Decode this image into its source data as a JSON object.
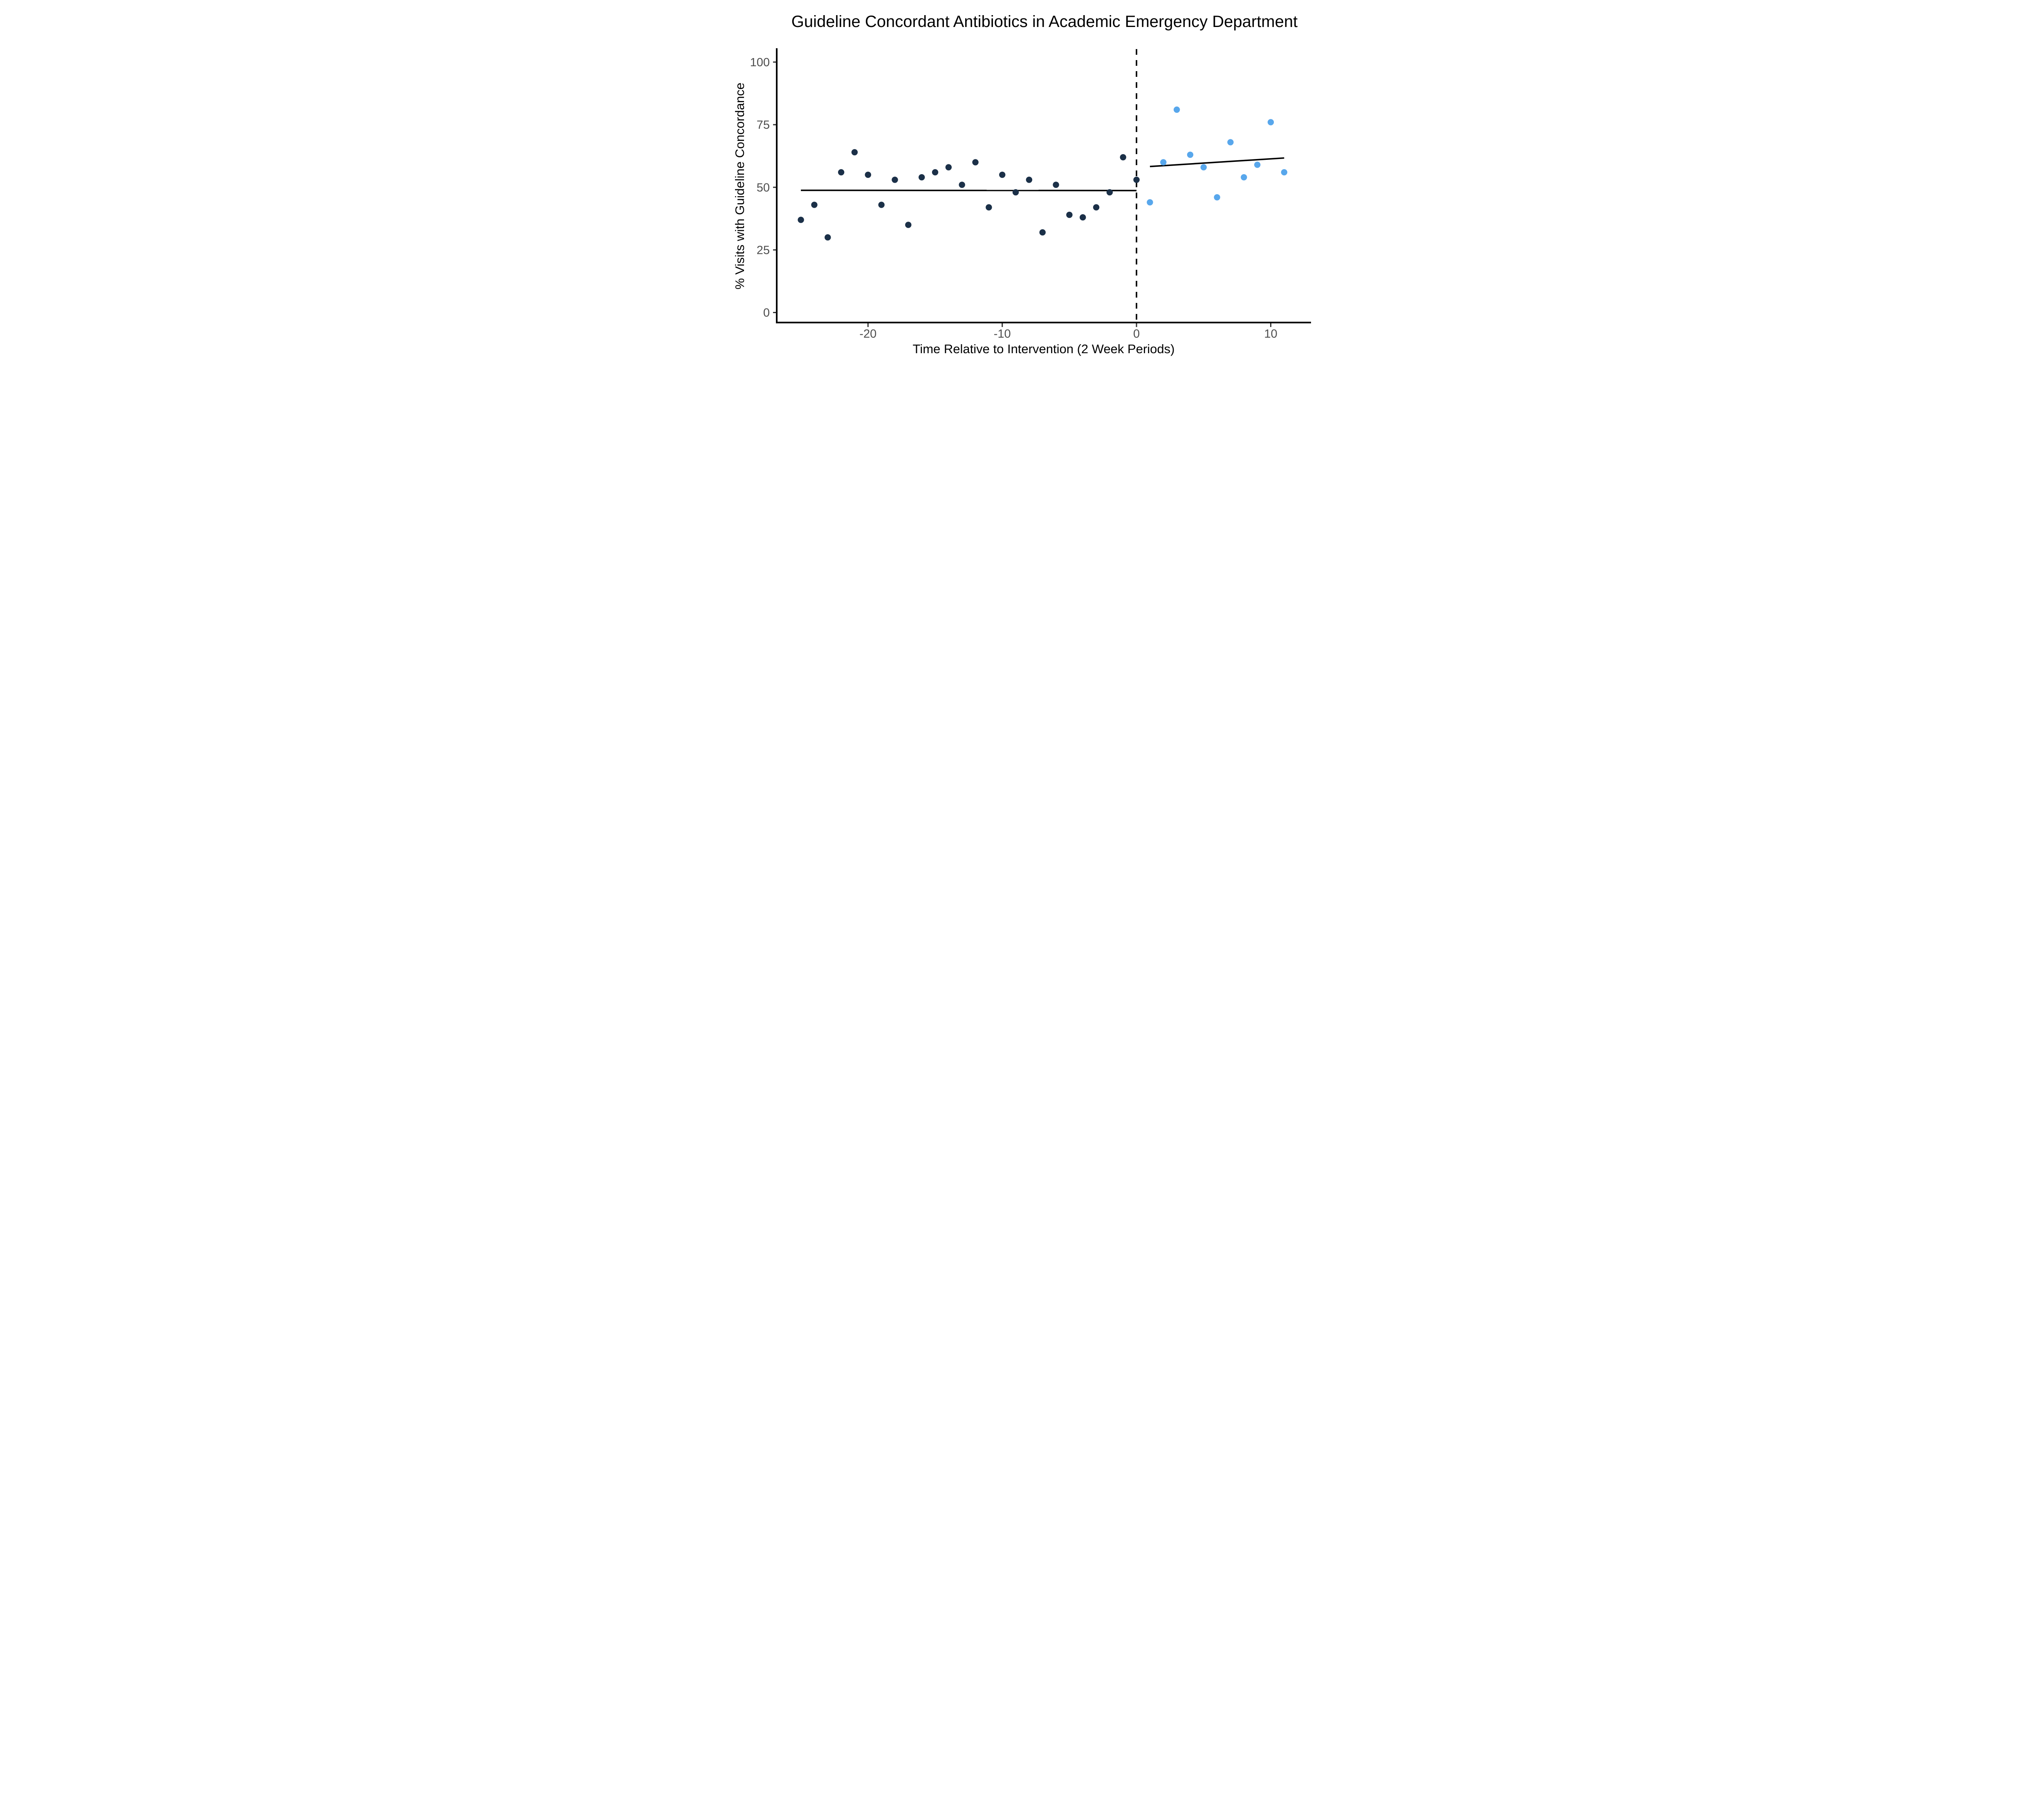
{
  "figure": {
    "title": "Guideline Concordant Antibiotics in Academic Emergency Department",
    "x_axis_label": "Time Relative to Intervention (2 Week Periods)",
    "y_axis_label": "% Visits with Guideline Concordance"
  },
  "chart_data": {
    "type": "scatter",
    "title": "Guideline Concordant Antibiotics in Academic Emergency Department",
    "xlabel": "Time Relative to Intervention (2 Week Periods)",
    "ylabel": "% Visits with Guideline Concordance",
    "xlim": [
      -26.8,
      13.0
    ],
    "ylim": [
      -4,
      105.2
    ],
    "x_ticks": [
      -20,
      -10,
      0,
      10
    ],
    "y_ticks": [
      0,
      25,
      50,
      75,
      100
    ],
    "grid": false,
    "legend_position": "none",
    "series": [
      {
        "name": "pre-intervention",
        "color": "#1B3048",
        "marker": "circle",
        "points": [
          [
            -25,
            37
          ],
          [
            -24,
            43
          ],
          [
            -23,
            30
          ],
          [
            -22,
            56
          ],
          [
            -21,
            64
          ],
          [
            -20,
            55
          ],
          [
            -19,
            43
          ],
          [
            -18,
            53
          ],
          [
            -17,
            35
          ],
          [
            -16,
            54
          ],
          [
            -15,
            56
          ],
          [
            -14,
            58
          ],
          [
            -13,
            51
          ],
          [
            -12,
            60
          ],
          [
            -11,
            42
          ],
          [
            -10,
            55
          ],
          [
            -9,
            48
          ],
          [
            -8,
            53
          ],
          [
            -7,
            32
          ],
          [
            -6,
            51
          ],
          [
            -5,
            39
          ],
          [
            -4,
            38
          ],
          [
            -3,
            42
          ],
          [
            -2,
            48
          ],
          [
            -1,
            62
          ],
          [
            0,
            53
          ]
        ]
      },
      {
        "name": "post-intervention",
        "color": "#58A7EC",
        "marker": "circle",
        "points": [
          [
            1,
            44
          ],
          [
            2,
            60
          ],
          [
            3,
            81
          ],
          [
            4,
            63
          ],
          [
            5,
            58
          ],
          [
            6,
            46
          ],
          [
            7,
            68
          ],
          [
            8,
            54
          ],
          [
            9,
            59
          ],
          [
            10,
            76
          ],
          [
            11,
            56
          ]
        ]
      }
    ],
    "trend_lines": [
      {
        "name": "pre-trend",
        "color": "#000000",
        "x1": -25,
        "y1": 48.8,
        "x2": 0,
        "y2": 48.7
      },
      {
        "name": "post-trend",
        "color": "#000000",
        "x1": 1,
        "y1": 58.3,
        "x2": 11,
        "y2": 61.7
      }
    ],
    "reference_line": {
      "axis": "x",
      "value": 0,
      "style": "dashed",
      "color": "#000000"
    }
  },
  "style": {
    "pre_point_color": "#1B3048",
    "post_point_color": "#58A7EC",
    "axis_line_color": "#000000",
    "tick_color": "#333333",
    "tick_label_color": "#4D4D4D",
    "background": "#FFFFFF"
  }
}
